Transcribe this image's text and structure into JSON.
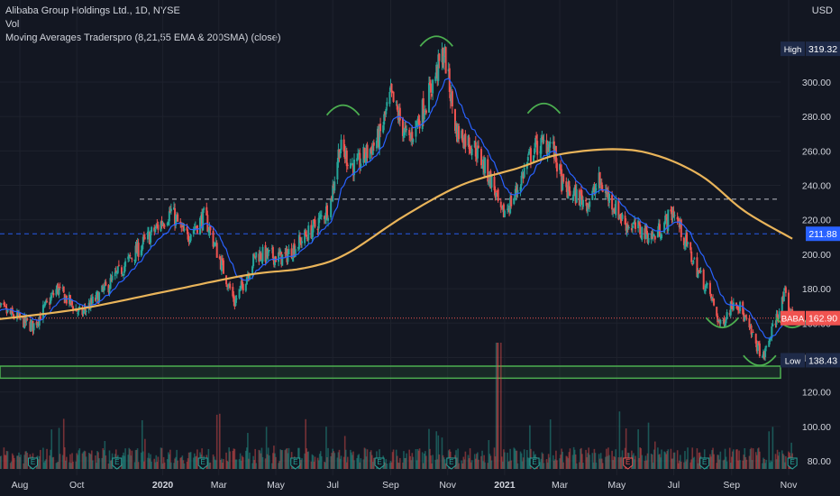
{
  "legend": {
    "title": "Alibaba Group Holdings Ltd., 1D, NYSE",
    "vol": "Vol",
    "ma": "Moving Averages Traderspro (8,21,55 EMA & 200SMA) (close)"
  },
  "currency": "USD",
  "colors": {
    "background": "#131722",
    "up": "#26a69a",
    "down": "#ef5350",
    "ema": "#2962ff",
    "sma200": "#e9b45a",
    "support_zone": "#4caf50",
    "level_line": "#2962ff",
    "annotation": "#4caf50",
    "last_price": "#f05350",
    "text": "#d1d4dc"
  },
  "chart_data": {
    "type": "candlestick",
    "symbol": "BABA",
    "ylim": [
      78,
      332
    ],
    "y_ticks": [
      80,
      100,
      120,
      140,
      160,
      180,
      200,
      220,
      240,
      260,
      280,
      300
    ],
    "x_ticks": [
      {
        "label": "Aug",
        "date": "2019-08-01"
      },
      {
        "label": "Oct",
        "date": "2019-10-01"
      },
      {
        "label": "2020",
        "date": "2020-01-01"
      },
      {
        "label": "Mar",
        "date": "2020-03-01"
      },
      {
        "label": "May",
        "date": "2020-05-01"
      },
      {
        "label": "Jul",
        "date": "2020-07-01"
      },
      {
        "label": "Sep",
        "date": "2020-09-01"
      },
      {
        "label": "Nov",
        "date": "2020-11-01"
      },
      {
        "label": "2021",
        "date": "2021-01-01"
      },
      {
        "label": "Mar",
        "date": "2021-03-01"
      },
      {
        "label": "May",
        "date": "2021-05-01"
      },
      {
        "label": "Jul",
        "date": "2021-07-01"
      },
      {
        "label": "Sep",
        "date": "2021-09-01"
      },
      {
        "label": "Nov",
        "date": "2021-11-01"
      }
    ],
    "price_path": [
      {
        "date": "2019-07-05",
        "close": 170
      },
      {
        "date": "2019-08-15",
        "close": 158
      },
      {
        "date": "2019-09-10",
        "close": 180
      },
      {
        "date": "2019-10-05",
        "close": 165
      },
      {
        "date": "2019-11-01",
        "close": 180
      },
      {
        "date": "2019-12-01",
        "close": 200
      },
      {
        "date": "2020-01-10",
        "close": 225
      },
      {
        "date": "2020-01-25",
        "close": 210
      },
      {
        "date": "2020-02-15",
        "close": 222
      },
      {
        "date": "2020-03-18",
        "close": 172
      },
      {
        "date": "2020-04-10",
        "close": 200
      },
      {
        "date": "2020-05-10",
        "close": 198
      },
      {
        "date": "2020-06-10",
        "close": 215
      },
      {
        "date": "2020-06-28",
        "close": 228
      },
      {
        "date": "2020-07-08",
        "close": 262
      },
      {
        "date": "2020-07-25",
        "close": 250
      },
      {
        "date": "2020-08-20",
        "close": 268
      },
      {
        "date": "2020-09-01",
        "close": 292
      },
      {
        "date": "2020-09-20",
        "close": 265
      },
      {
        "date": "2020-10-10",
        "close": 290
      },
      {
        "date": "2020-10-28",
        "close": 318
      },
      {
        "date": "2020-11-10",
        "close": 272
      },
      {
        "date": "2020-11-30",
        "close": 262
      },
      {
        "date": "2020-12-20",
        "close": 240
      },
      {
        "date": "2020-12-28",
        "close": 222
      },
      {
        "date": "2021-01-10",
        "close": 232
      },
      {
        "date": "2021-02-01",
        "close": 262
      },
      {
        "date": "2021-02-20",
        "close": 265
      },
      {
        "date": "2021-03-05",
        "close": 238
      },
      {
        "date": "2021-04-01",
        "close": 230
      },
      {
        "date": "2021-04-12",
        "close": 242
      },
      {
        "date": "2021-05-10",
        "close": 218
      },
      {
        "date": "2021-06-10",
        "close": 210
      },
      {
        "date": "2021-07-01",
        "close": 225
      },
      {
        "date": "2021-07-20",
        "close": 198
      },
      {
        "date": "2021-08-10",
        "close": 175
      },
      {
        "date": "2021-08-20",
        "close": 158
      },
      {
        "date": "2021-09-05",
        "close": 175
      },
      {
        "date": "2021-09-25",
        "close": 150
      },
      {
        "date": "2021-10-05",
        "close": 140
      },
      {
        "date": "2021-10-20",
        "close": 165
      },
      {
        "date": "2021-10-28",
        "close": 176
      },
      {
        "date": "2021-11-05",
        "close": 163
      }
    ],
    "sma200": [
      {
        "date": "2019-07-05",
        "value": 162
      },
      {
        "date": "2019-10-01",
        "value": 168
      },
      {
        "date": "2020-01-01",
        "value": 178
      },
      {
        "date": "2020-04-01",
        "value": 188
      },
      {
        "date": "2020-06-01",
        "value": 192
      },
      {
        "date": "2020-07-15",
        "value": 200
      },
      {
        "date": "2020-09-15",
        "value": 222
      },
      {
        "date": "2020-11-15",
        "value": 240
      },
      {
        "date": "2021-01-15",
        "value": 250
      },
      {
        "date": "2021-03-01",
        "value": 258
      },
      {
        "date": "2021-05-01",
        "value": 261
      },
      {
        "date": "2021-06-15",
        "value": 257
      },
      {
        "date": "2021-08-01",
        "value": 245
      },
      {
        "date": "2021-09-15",
        "value": 225
      },
      {
        "date": "2021-11-05",
        "value": 209
      }
    ],
    "horizontal_levels": [
      {
        "value": 232,
        "color": "#d1d4dc",
        "style": "dashed"
      },
      {
        "value": 211.88,
        "color": "#2962ff",
        "style": "dashed"
      }
    ],
    "support_zone": {
      "top": 135,
      "bottom": 128
    },
    "last_price": 162.9,
    "high": 319.32,
    "low": 138.43,
    "price_labels": [
      {
        "text": "High",
        "value": "319.32",
        "y": 319.32,
        "bg": "#1e2a48"
      },
      {
        "text": "",
        "value": "211.88",
        "y": 211.88,
        "bg": "#2962ff"
      },
      {
        "text": "BABA",
        "value": "162.90",
        "y": 162.9,
        "bg": "#f05350"
      },
      {
        "text": "Low",
        "value": "138.43",
        "y": 138.43,
        "bg": "#1e2a48"
      }
    ],
    "annotations": [
      {
        "type": "arc-top",
        "date": "2020-07-12",
        "y": 285
      },
      {
        "type": "arc-top",
        "date": "2020-10-20",
        "y": 325
      },
      {
        "type": "arc-top",
        "date": "2021-02-12",
        "y": 286
      },
      {
        "type": "arc-bottom",
        "date": "2021-08-22",
        "y": 159
      },
      {
        "type": "arc-bottom",
        "date": "2021-10-01",
        "y": 137
      },
      {
        "type": "arc-bottom",
        "date": "2021-11-05",
        "y": 159
      }
    ],
    "earnings_dates": [
      "2019-08-15",
      "2019-11-13",
      "2020-02-13",
      "2020-05-22",
      "2020-08-20",
      "2020-11-05",
      "2021-02-02",
      "2021-05-13",
      "2021-08-03",
      "2021-11-05"
    ]
  }
}
